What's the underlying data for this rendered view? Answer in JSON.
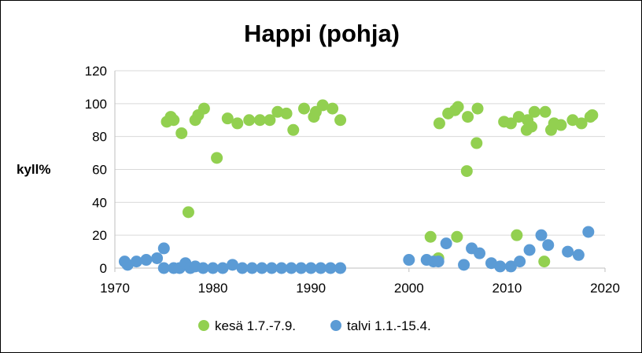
{
  "chart_data": {
    "type": "scatter",
    "title": "Happi (pohja)",
    "ylabel": "kyll%",
    "xlabel": "",
    "xlim": [
      1970,
      2020
    ],
    "ylim": [
      0,
      120
    ],
    "x_ticks": [
      1970,
      1980,
      1990,
      2000,
      2010,
      2020
    ],
    "y_ticks": [
      0,
      20,
      40,
      60,
      80,
      100,
      120
    ],
    "grid": "horizontal",
    "legend_position": "bottom",
    "series": [
      {
        "name": "kesä 1.7.-7.9.",
        "color": "#92d050",
        "points": [
          [
            1975.3,
            89
          ],
          [
            1975.7,
            92
          ],
          [
            1976.0,
            90
          ],
          [
            1976.8,
            82
          ],
          [
            1977.5,
            34
          ],
          [
            1978.2,
            90
          ],
          [
            1978.5,
            93
          ],
          [
            1979.1,
            97
          ],
          [
            1980.4,
            67
          ],
          [
            1981.5,
            91
          ],
          [
            1982.5,
            88
          ],
          [
            1983.7,
            90
          ],
          [
            1984.8,
            90
          ],
          [
            1985.8,
            90
          ],
          [
            1986.6,
            95
          ],
          [
            1987.5,
            94
          ],
          [
            1988.2,
            84
          ],
          [
            1989.3,
            97
          ],
          [
            1990.3,
            92
          ],
          [
            1990.5,
            95
          ],
          [
            1991.2,
            99
          ],
          [
            1992.2,
            97
          ],
          [
            1993.0,
            90
          ],
          [
            2002.2,
            19
          ],
          [
            2003.0,
            6
          ],
          [
            2003.1,
            88
          ],
          [
            2004.0,
            94
          ],
          [
            2004.7,
            96
          ],
          [
            2004.9,
            19
          ],
          [
            2005.0,
            98
          ],
          [
            2005.9,
            59
          ],
          [
            2006.0,
            92
          ],
          [
            2006.9,
            76
          ],
          [
            2007.0,
            97
          ],
          [
            2009.7,
            89
          ],
          [
            2010.4,
            88
          ],
          [
            2011.0,
            20
          ],
          [
            2011.2,
            92
          ],
          [
            2012.0,
            84
          ],
          [
            2012.1,
            90
          ],
          [
            2012.5,
            86
          ],
          [
            2012.8,
            95
          ],
          [
            2013.8,
            4
          ],
          [
            2013.9,
            95
          ],
          [
            2014.5,
            84
          ],
          [
            2014.8,
            88
          ],
          [
            2015.5,
            87
          ],
          [
            2016.7,
            90
          ],
          [
            2017.6,
            88
          ],
          [
            2018.5,
            92
          ],
          [
            2018.7,
            93
          ]
        ]
      },
      {
        "name": "talvi 1.1.-15.4.",
        "color": "#5b9bd5",
        "points": [
          [
            1971.0,
            4
          ],
          [
            1971.3,
            2
          ],
          [
            1972.2,
            4
          ],
          [
            1973.2,
            5
          ],
          [
            1974.3,
            6
          ],
          [
            1975.0,
            12
          ],
          [
            1975.0,
            0
          ],
          [
            1976.0,
            0
          ],
          [
            1976.6,
            0
          ],
          [
            1977.2,
            3
          ],
          [
            1977.7,
            0
          ],
          [
            1978.2,
            1
          ],
          [
            1979.0,
            0
          ],
          [
            1980.0,
            0
          ],
          [
            1981.0,
            0
          ],
          [
            1982.0,
            2
          ],
          [
            1983.0,
            0
          ],
          [
            1984.0,
            0
          ],
          [
            1985.0,
            0
          ],
          [
            1986.0,
            0
          ],
          [
            1987.0,
            0
          ],
          [
            1988.0,
            0
          ],
          [
            1989.0,
            0
          ],
          [
            1990.0,
            0
          ],
          [
            1991.0,
            0
          ],
          [
            1992.0,
            0
          ],
          [
            1993.0,
            0
          ],
          [
            2000.0,
            5
          ],
          [
            2001.8,
            5
          ],
          [
            2002.5,
            4
          ],
          [
            2003.0,
            4
          ],
          [
            2003.8,
            15
          ],
          [
            2005.6,
            2
          ],
          [
            2006.4,
            12
          ],
          [
            2007.2,
            9
          ],
          [
            2008.4,
            3
          ],
          [
            2009.3,
            1
          ],
          [
            2010.4,
            1
          ],
          [
            2011.3,
            4
          ],
          [
            2012.3,
            11
          ],
          [
            2013.5,
            20
          ],
          [
            2014.2,
            14
          ],
          [
            2016.2,
            10
          ],
          [
            2017.3,
            8
          ],
          [
            2018.3,
            22
          ]
        ]
      }
    ]
  }
}
